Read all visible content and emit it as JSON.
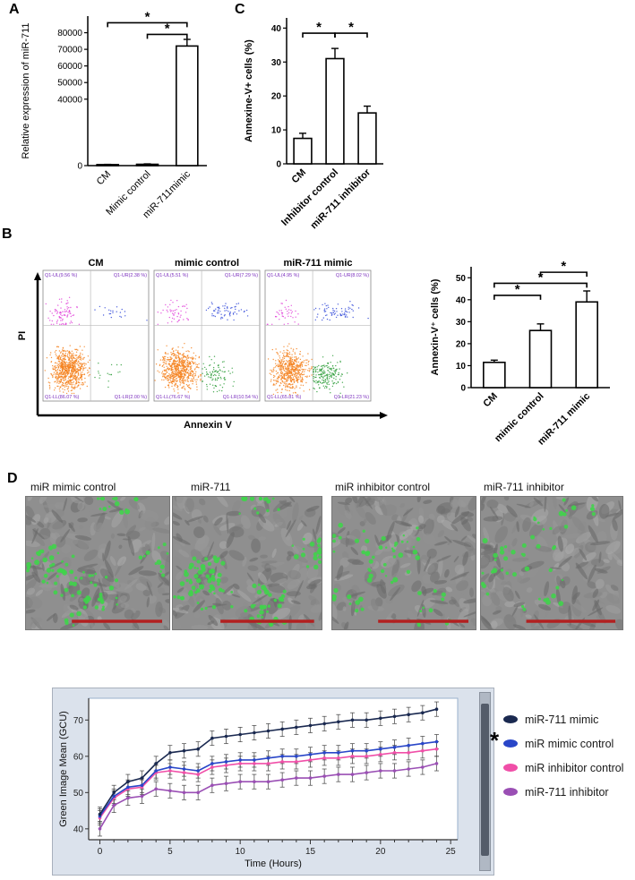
{
  "panels": {
    "a": "A",
    "b": "B",
    "c": "C",
    "d": "D"
  },
  "flow": {
    "xlabel": "Annexin V",
    "ylabel": "PI",
    "plots": [
      {
        "title": "CM",
        "ul": {
          "label": "Q1-UL(9.56 %)",
          "pct": 9.56
        },
        "ur": {
          "label": "Q1-UR(2.38 %)",
          "pct": 2.38
        },
        "ll": {
          "label": "Q1-LL(86.07 %)",
          "pct": 86.07
        },
        "lr": {
          "label": "Q1-LR(2.00 %)",
          "pct": 2.0
        }
      },
      {
        "title": "mimic control",
        "ul": {
          "label": "Q1-UL(5.51 %)",
          "pct": 5.51
        },
        "ur": {
          "label": "Q1-UR(7.29 %)",
          "pct": 7.29
        },
        "ll": {
          "label": "Q1-LL(76.67 %)",
          "pct": 76.67
        },
        "lr": {
          "label": "Q1-LR(10.54 %)",
          "pct": 10.54
        }
      },
      {
        "title": "miR-711 mimic",
        "ul": {
          "label": "Q1-UL(4.95 %)",
          "pct": 4.95
        },
        "ur": {
          "label": "Q1-UR(8.02 %)",
          "pct": 8.02
        },
        "ll": {
          "label": "Q1-LL(65.81 %)",
          "pct": 65.81
        },
        "lr": {
          "label": "Q1-LR(21.23 %)",
          "pct": 21.23
        }
      }
    ]
  },
  "micro": {
    "labels": [
      "miR mimic control",
      "miR-711",
      "miR inhibitor control",
      "miR-711 inhibitor"
    ]
  },
  "legend": [
    {
      "label": "miR-711 mimic",
      "color": "#1a2950"
    },
    {
      "label": "miR mimic control",
      "color": "#2946c8"
    },
    {
      "label": "miR inhibitor control",
      "color": "#f04fa8"
    },
    {
      "label": "miR-711 inhibitor",
      "color": "#9a4fb4"
    }
  ],
  "annotation_star": "*",
  "chart_data": [
    {
      "id": "chartA",
      "type": "bar",
      "title": "",
      "ylabel": "Relative expression of miR-711",
      "categories": [
        "CM",
        "Mimic control",
        "miR-711mimic"
      ],
      "values": [
        600,
        800,
        72000
      ],
      "errors": [
        150,
        250,
        4000
      ],
      "yticks": [
        0,
        40000,
        50000,
        60000,
        70000,
        80000
      ],
      "ylim": [
        0,
        90000
      ],
      "bold": false,
      "significance": [
        {
          "a": 0,
          "b": 2,
          "y": 86000,
          "label": "*"
        },
        {
          "a": 1,
          "b": 2,
          "y": 79000,
          "label": "*"
        }
      ]
    },
    {
      "id": "chartC",
      "type": "bar",
      "title": "",
      "ylabel": "Annexine-V+ cells (%)",
      "categories": [
        "CM",
        "Inhibitor control",
        "miR-711 inhibitor"
      ],
      "values": [
        7.5,
        31,
        15
      ],
      "errors": [
        1.5,
        3,
        2
      ],
      "yticks": [
        0,
        10,
        20,
        30,
        40
      ],
      "ylim": [
        0,
        43
      ],
      "bold": true,
      "significance": [
        {
          "a": 0,
          "b": 1,
          "y": 38.5,
          "label": "*"
        },
        {
          "a": 1,
          "b": 2,
          "y": 38.5,
          "label": "*"
        }
      ]
    },
    {
      "id": "chartB",
      "type": "bar",
      "title": "",
      "ylabel": "Annexin-V⁺ cells (%)",
      "categories": [
        "CM",
        "mimic control",
        "miR-711 mimic"
      ],
      "values": [
        11.5,
        26,
        39
      ],
      "errors": [
        1,
        3,
        5
      ],
      "yticks": [
        0,
        10,
        20,
        30,
        40,
        50
      ],
      "ylim": [
        0,
        55
      ],
      "bold": true,
      "significance": [
        {
          "a": 0,
          "b": 1,
          "y": 42,
          "label": "*"
        },
        {
          "a": 0,
          "b": 2,
          "y": 47.5,
          "label": "*"
        },
        {
          "a": 1,
          "b": 2,
          "y": 52.5,
          "label": "*"
        }
      ]
    },
    {
      "id": "lineChart",
      "type": "line",
      "title": "",
      "xlabel": "Time (Hours)",
      "ylabel": "Green Image Mean (GCU)",
      "x": [
        0,
        1,
        2,
        3,
        4,
        5,
        6,
        7,
        8,
        9,
        10,
        11,
        12,
        13,
        14,
        15,
        16,
        17,
        18,
        19,
        20,
        21,
        22,
        23,
        24
      ],
      "xticks": [
        0,
        5,
        10,
        15,
        20,
        25
      ],
      "yticks": [
        40,
        50,
        60,
        70
      ],
      "ylim": [
        37,
        76
      ],
      "err": 2,
      "legend_position": "right",
      "annotation": "*",
      "series": [
        {
          "name": "miR-711 mimic",
          "color": "#1a2950",
          "values": [
            44,
            50,
            53,
            54,
            58,
            61,
            61.5,
            62,
            65,
            65.5,
            66,
            66.5,
            67,
            67.5,
            68,
            68.5,
            69,
            69.5,
            70,
            70,
            70.5,
            71,
            71.5,
            72,
            73
          ]
        },
        {
          "name": "miR mimic control",
          "color": "#2946c8",
          "values": [
            43.5,
            49,
            51.5,
            52,
            56,
            57,
            56.5,
            56,
            58,
            58.5,
            59,
            59,
            59.5,
            60,
            60,
            60.5,
            61,
            61,
            61.5,
            61.5,
            62,
            62.5,
            63,
            63.5,
            64
          ]
        },
        {
          "name": "miR inhibitor control",
          "color": "#f04fa8",
          "values": [
            43,
            48.5,
            51,
            51.5,
            55.5,
            56,
            55.5,
            55,
            57,
            57.5,
            58,
            58,
            58,
            58.5,
            58.5,
            59,
            59.5,
            59.5,
            60,
            60,
            60.5,
            61,
            61,
            61.5,
            62
          ]
        },
        {
          "name": "miR-711 inhibitor",
          "color": "#9a4fb4",
          "values": [
            40,
            46.5,
            48.5,
            49,
            51,
            50.5,
            50,
            50,
            52,
            52.5,
            53,
            53,
            53,
            53.5,
            54,
            54,
            54.5,
            55,
            55,
            55.5,
            56,
            56,
            56.5,
            57,
            58
          ]
        }
      ]
    }
  ]
}
